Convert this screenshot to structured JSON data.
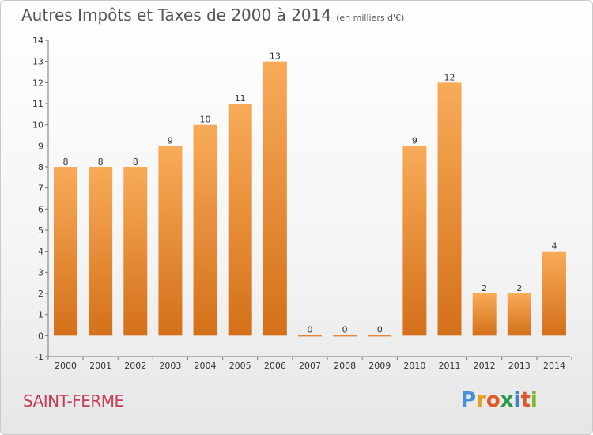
{
  "title": "Autres Impôts et Taxes de 2000 à 2014",
  "unit": "(en milliers d'€)",
  "commune": "SAINT-FERME",
  "logo": {
    "letters": [
      "P",
      "r",
      "o",
      "x",
      "i",
      "t",
      "i"
    ],
    "colors": [
      "#4a90d9",
      "#e0a020",
      "#e05a28",
      "#2a9a4a",
      "#3a7fd0",
      "#d85a2a",
      "#7ab830"
    ]
  },
  "colors": {
    "bar_light": "#f6a550",
    "bar_dark": "#d9761e",
    "axis": "#777777",
    "title": "#555555",
    "commune": "#c24059"
  },
  "chart_data": {
    "type": "bar",
    "categories": [
      "2000",
      "2001",
      "2002",
      "2003",
      "2004",
      "2005",
      "2006",
      "2007",
      "2008",
      "2009",
      "2010",
      "2011",
      "2012",
      "2013",
      "2014"
    ],
    "values": [
      8,
      8,
      8,
      9,
      10,
      11,
      13,
      0,
      0,
      0,
      9,
      12,
      2,
      2,
      4
    ],
    "data_labels": [
      "8",
      "8",
      "8",
      "9",
      "10",
      "11",
      "13",
      "0",
      "0",
      "0",
      "9",
      "12",
      "2",
      "2",
      "4"
    ],
    "yticks": [
      "-1",
      "0",
      "1",
      "2",
      "3",
      "4",
      "5",
      "6",
      "7",
      "8",
      "9",
      "10",
      "11",
      "12",
      "13",
      "14"
    ],
    "ylim": [
      -1,
      14
    ],
    "grid": false,
    "xlabel": "",
    "ylabel": ""
  }
}
